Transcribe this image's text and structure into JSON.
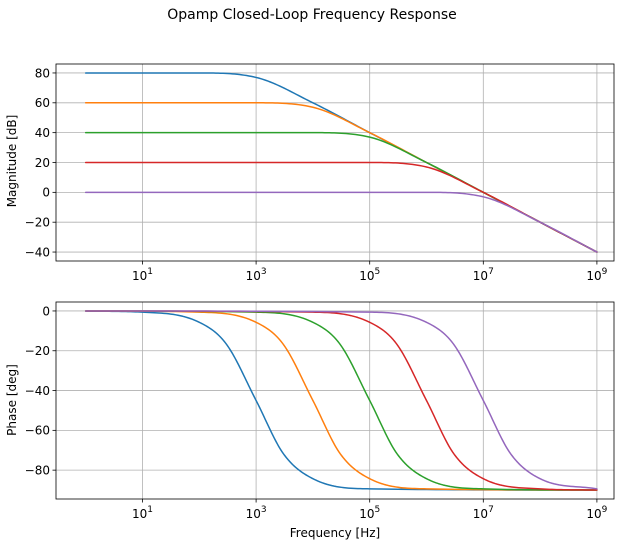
{
  "figure_title": "Opamp Closed-Loop Frequency Response",
  "chart_data": [
    {
      "type": "line",
      "title": "",
      "xlabel": "",
      "ylabel": "Magnitude [dB]",
      "xscale": "log",
      "xlim": [
        0.3,
        2000000000
      ],
      "ylim": [
        -46,
        86
      ],
      "xticks": [
        {
          "value": 10,
          "base": "10",
          "exp": "1"
        },
        {
          "value": 1000,
          "base": "10",
          "exp": "3"
        },
        {
          "value": 100000,
          "base": "10",
          "exp": "5"
        },
        {
          "value": 10000000,
          "base": "10",
          "exp": "7"
        },
        {
          "value": 1000000000,
          "base": "10",
          "exp": "9"
        }
      ],
      "yticks": [
        {
          "value": 80,
          "label": "80"
        },
        {
          "value": 60,
          "label": "60"
        },
        {
          "value": 40,
          "label": "40"
        },
        {
          "value": 20,
          "label": "20"
        },
        {
          "value": 0,
          "label": "0"
        },
        {
          "value": -20,
          "label": "−20"
        },
        {
          "value": -40,
          "label": "−40"
        }
      ],
      "grid": true,
      "series": [
        {
          "color": "#1f77b4",
          "x": [
            1,
            10,
            100,
            1000,
            10000,
            100000,
            1000000,
            10000000,
            100000000,
            1000000000
          ],
          "y": [
            80,
            80,
            80,
            77,
            60,
            40,
            20,
            0,
            -20,
            -40
          ]
        },
        {
          "color": "#ff7f0e",
          "x": [
            1,
            10,
            100,
            1000,
            10000,
            100000,
            1000000,
            10000000,
            100000000,
            1000000000
          ],
          "y": [
            60,
            60,
            60,
            60,
            57,
            40,
            20,
            0,
            -20,
            -40
          ]
        },
        {
          "color": "#2ca02c",
          "x": [
            1,
            10,
            100,
            1000,
            10000,
            100000,
            1000000,
            10000000,
            100000000,
            1000000000
          ],
          "y": [
            40,
            40,
            40,
            40,
            40,
            37,
            20,
            0,
            -20,
            -40
          ]
        },
        {
          "color": "#d62728",
          "x": [
            1,
            10,
            100,
            1000,
            10000,
            100000,
            1000000,
            10000000,
            100000000,
            1000000000
          ],
          "y": [
            20,
            20,
            20,
            20,
            20,
            20,
            17,
            0,
            -20,
            -40
          ]
        },
        {
          "color": "#9467bd",
          "x": [
            1,
            10,
            100,
            1000,
            10000,
            100000,
            1000000,
            10000000,
            100000000,
            1000000000
          ],
          "y": [
            0,
            0,
            0,
            0,
            0,
            0,
            0,
            -3,
            -20,
            -40
          ]
        }
      ]
    },
    {
      "type": "line",
      "title": "",
      "xlabel": "Frequency [Hz]",
      "ylabel": "Phase [deg]",
      "xscale": "log",
      "xlim": [
        0.3,
        2000000000
      ],
      "ylim": [
        -94.5,
        4.5
      ],
      "xticks": [
        {
          "value": 10,
          "base": "10",
          "exp": "1"
        },
        {
          "value": 1000,
          "base": "10",
          "exp": "3"
        },
        {
          "value": 100000,
          "base": "10",
          "exp": "5"
        },
        {
          "value": 10000000,
          "base": "10",
          "exp": "7"
        },
        {
          "value": 1000000000,
          "base": "10",
          "exp": "9"
        }
      ],
      "yticks": [
        {
          "value": 0,
          "label": "0"
        },
        {
          "value": -20,
          "label": "−20"
        },
        {
          "value": -40,
          "label": "−40"
        },
        {
          "value": -60,
          "label": "−60"
        },
        {
          "value": -80,
          "label": "−80"
        }
      ],
      "grid": true,
      "series": [
        {
          "color": "#1f77b4",
          "x": [
            1,
            10,
            100,
            300,
            1000,
            3000,
            10000,
            100000,
            1000000000
          ],
          "y": [
            -0.1,
            -0.6,
            -5.7,
            -16.7,
            -45,
            -71.6,
            -84.3,
            -89.4,
            -90
          ]
        },
        {
          "color": "#ff7f0e",
          "x": [
            1,
            100,
            1000,
            3000,
            10000,
            30000,
            100000,
            1000000,
            1000000000
          ],
          "y": [
            0,
            -0.6,
            -5.7,
            -16.7,
            -45,
            -71.6,
            -84.3,
            -89.4,
            -90
          ]
        },
        {
          "color": "#2ca02c",
          "x": [
            1,
            1000,
            10000,
            30000,
            100000,
            300000,
            1000000,
            10000000,
            1000000000
          ],
          "y": [
            0,
            -0.6,
            -5.7,
            -16.7,
            -45,
            -71.6,
            -84.3,
            -89.4,
            -90
          ]
        },
        {
          "color": "#d62728",
          "x": [
            1,
            10000,
            100000,
            300000,
            1000000,
            3000000,
            10000000,
            100000000,
            1000000000
          ],
          "y": [
            0,
            -0.6,
            -5.7,
            -16.7,
            -45,
            -71.6,
            -84.3,
            -89.4,
            -90
          ]
        },
        {
          "color": "#9467bd",
          "x": [
            1,
            100000,
            1000000,
            3000000,
            10000000,
            30000000,
            100000000,
            1000000000
          ],
          "y": [
            0,
            -0.6,
            -5.7,
            -16.7,
            -45,
            -71.6,
            -84.3,
            -89.4
          ]
        }
      ]
    }
  ]
}
